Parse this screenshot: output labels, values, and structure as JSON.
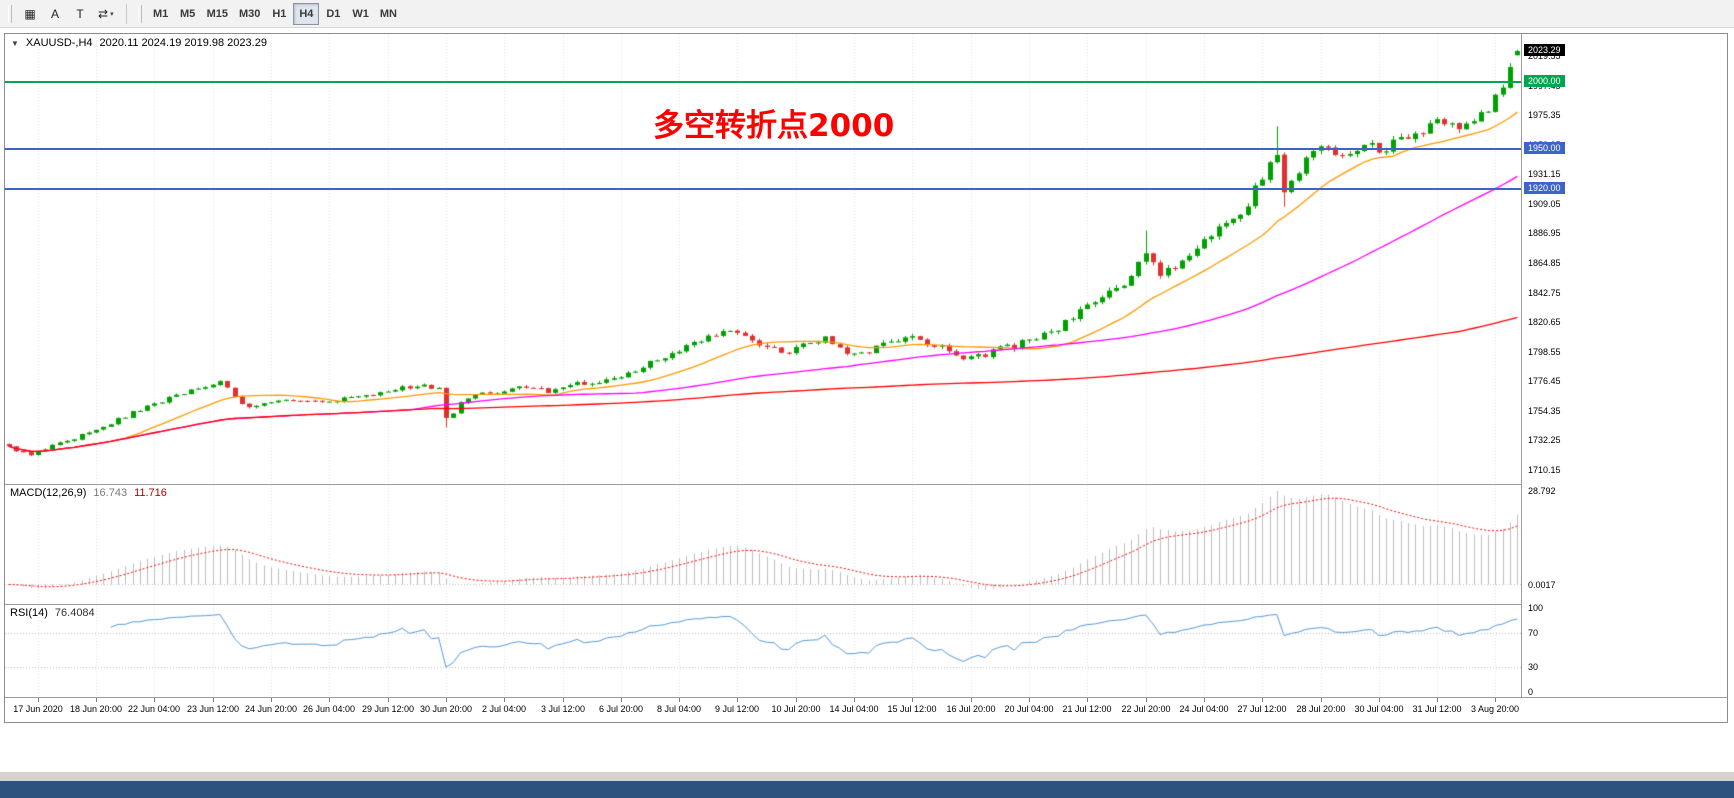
{
  "ui": {
    "toolbar": {
      "left_icons": [
        {
          "name": "chart-grid-icon",
          "glyph": "▦"
        },
        {
          "name": "arrow-text-tool-icon",
          "glyph": "A"
        },
        {
          "name": "text-label-tool-icon",
          "glyph": "T"
        },
        {
          "name": "cycle-symbols-icon",
          "glyph": "⇄",
          "caret": "▾"
        }
      ],
      "timeframes": [
        {
          "label": "M1",
          "active": false
        },
        {
          "label": "M5",
          "active": false
        },
        {
          "label": "M15",
          "active": false
        },
        {
          "label": "M30",
          "active": false
        },
        {
          "label": "H1",
          "active": false
        },
        {
          "label": "H4",
          "active": true
        },
        {
          "label": "D1",
          "active": false
        },
        {
          "label": "W1",
          "active": false
        },
        {
          "label": "MN",
          "active": false
        }
      ]
    },
    "title_symbol": "XAUUSD-,H4",
    "title_ohlc": "2020.11 2024.19 2019.98 2023.29",
    "title_triangle": "▼",
    "macd_label": "MACD(12,26,9)",
    "macd_main_value": "16.743",
    "macd_signal_value": "11.716",
    "macd_axis_max": "28.792",
    "macd_axis_zero": "0.0017",
    "rsi_label": "RSI(14)",
    "rsi_value": "76.4084"
  },
  "chart_data": {
    "type": "candlestick",
    "symbol": "XAUUSD-",
    "timeframe": "H4",
    "title": "XAUUSD-,H4  2020.11 2024.19 2019.98 2023.29",
    "last_candle_ohlc": {
      "open": 2020.11,
      "high": 2024.19,
      "low": 2019.98,
      "close": 2023.29
    },
    "last_price_label": "2023.29",
    "last_price_badge_color": "#000000",
    "annotation": {
      "text": "多空转折点2000",
      "color": "#FF0000"
    },
    "ylim": [
      1699.7,
      2036.0
    ],
    "bars": 208,
    "price_ticks": [
      1710.15,
      1732.25,
      1754.35,
      1776.45,
      1798.55,
      1820.65,
      1842.75,
      1864.85,
      1886.95,
      1909.05,
      1931.15,
      1953.25,
      1975.35,
      1997.45,
      2019.55
    ],
    "time_labels": [
      "17 Jun 2020",
      "18 Jun 20:00",
      "22 Jun 04:00",
      "23 Jun 12:00",
      "24 Jun 20:00",
      "26 Jun 04:00",
      "29 Jun 12:00",
      "30 Jun 20:00",
      "2 Jul 04:00",
      "3 Jul 12:00",
      "6 Jul 20:00",
      "8 Jul 04:00",
      "9 Jul 12:00",
      "10 Jul 20:00",
      "14 Jul 04:00",
      "15 Jul 12:00",
      "16 Jul 20:00",
      "20 Jul 04:00",
      "21 Jul 12:00",
      "22 Jul 20:00",
      "24 Jul 04:00",
      "27 Jul 12:00",
      "28 Jul 20:00",
      "30 Jul 04:00",
      "31 Jul 12:00",
      "3 Aug 20:00"
    ],
    "hlines": [
      {
        "price": 2000.0,
        "label": "2000.00",
        "color": "#00A651",
        "width": 2
      },
      {
        "price": 1950.0,
        "label": "1950.00",
        "color": "#3D64C8",
        "width": 2
      },
      {
        "price": 1920.0,
        "label": "1920.00",
        "color": "#3D64C8",
        "width": 2
      }
    ],
    "moving_averages": [
      {
        "period": 16,
        "color": "#FF9900"
      },
      {
        "period": 56,
        "color": "#FF00FF"
      },
      {
        "period": 200,
        "color": "#FF0000"
      }
    ],
    "candle_up_color": "#00A000",
    "candle_down_color": "#E03030",
    "close_anchors": [
      [
        0,
        1727
      ],
      [
        3,
        1721
      ],
      [
        6,
        1728
      ],
      [
        10,
        1736
      ],
      [
        14,
        1745
      ],
      [
        17,
        1753
      ],
      [
        21,
        1762
      ],
      [
        24,
        1768
      ],
      [
        27,
        1772
      ],
      [
        29,
        1776
      ],
      [
        31,
        1765
      ],
      [
        33,
        1757
      ],
      [
        36,
        1760
      ],
      [
        40,
        1763
      ],
      [
        44,
        1761
      ],
      [
        48,
        1766
      ],
      [
        52,
        1769
      ],
      [
        55,
        1772
      ],
      [
        57,
        1774
      ],
      [
        59,
        1771
      ],
      [
        60,
        1748
      ],
      [
        62,
        1760
      ],
      [
        65,
        1767
      ],
      [
        70,
        1771
      ],
      [
        74,
        1769
      ],
      [
        78,
        1774
      ],
      [
        82,
        1777
      ],
      [
        86,
        1785
      ],
      [
        90,
        1794
      ],
      [
        93,
        1802
      ],
      [
        96,
        1810
      ],
      [
        100,
        1814
      ],
      [
        102,
        1808
      ],
      [
        104,
        1803
      ],
      [
        106,
        1799
      ],
      [
        108,
        1800
      ],
      [
        110,
        1806
      ],
      [
        112,
        1809
      ],
      [
        114,
        1801
      ],
      [
        116,
        1795
      ],
      [
        118,
        1799
      ],
      [
        120,
        1803
      ],
      [
        122,
        1807
      ],
      [
        124,
        1810
      ],
      [
        126,
        1806
      ],
      [
        128,
        1802
      ],
      [
        130,
        1797
      ],
      [
        132,
        1794
      ],
      [
        134,
        1797
      ],
      [
        136,
        1800
      ],
      [
        138,
        1803
      ],
      [
        140,
        1807
      ],
      [
        142,
        1811
      ],
      [
        144,
        1817
      ],
      [
        146,
        1824
      ],
      [
        148,
        1832
      ],
      [
        150,
        1838
      ],
      [
        152,
        1845
      ],
      [
        154,
        1856
      ],
      [
        156,
        1874
      ],
      [
        158,
        1858
      ],
      [
        160,
        1862
      ],
      [
        162,
        1870
      ],
      [
        164,
        1882
      ],
      [
        166,
        1890
      ],
      [
        168,
        1898
      ],
      [
        170,
        1910
      ],
      [
        171,
        1920
      ],
      [
        172,
        1929
      ],
      [
        173,
        1938
      ],
      [
        174,
        1943
      ],
      [
        175,
        1915
      ],
      [
        176,
        1925
      ],
      [
        177,
        1935
      ],
      [
        179,
        1946
      ],
      [
        180,
        1952
      ],
      [
        182,
        1947
      ],
      [
        183,
        1943
      ],
      [
        185,
        1950
      ],
      [
        186,
        1955
      ],
      [
        188,
        1949
      ],
      [
        190,
        1954
      ],
      [
        191,
        1957
      ],
      [
        193,
        1960
      ],
      [
        194,
        1962
      ],
      [
        196,
        1974
      ],
      [
        197,
        1971
      ],
      [
        199,
        1968
      ],
      [
        201,
        1973
      ],
      [
        202,
        1976
      ],
      [
        203,
        1979
      ],
      [
        204,
        1988
      ],
      [
        205,
        1999
      ],
      [
        206,
        2012
      ],
      [
        207,
        2023.29
      ]
    ],
    "wick_events": [
      {
        "i": 60,
        "low": 1742
      },
      {
        "i": 156,
        "high": 1889
      },
      {
        "i": 174,
        "high": 1967
      },
      {
        "i": 175,
        "low": 1907
      }
    ],
    "macd": {
      "fast": 12,
      "slow": 26,
      "signal": 9,
      "current_main": 16.743,
      "current_signal": 11.716,
      "axis_max": 28.792,
      "histogram_color": "#bdbdbd",
      "signal_color": "#FF0000"
    },
    "rsi": {
      "period": 14,
      "current": 76.4084,
      "levels": [
        70,
        30
      ],
      "range_labels": [
        "100",
        "70",
        "30",
        "0"
      ],
      "line_color": "#5599d8"
    }
  }
}
